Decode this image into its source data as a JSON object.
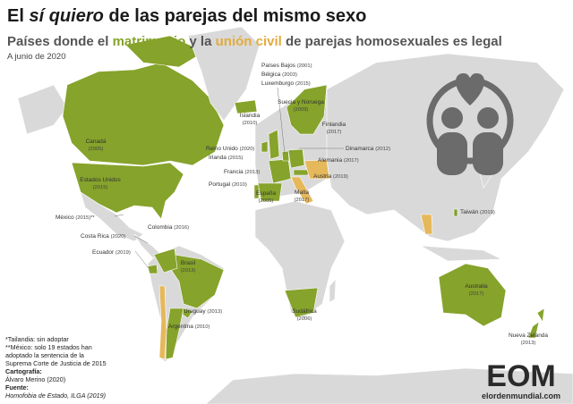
{
  "header": {
    "title": {
      "before": "El",
      "emphasis": "sí quiero",
      "after": "de las parejas del mismo sexo"
    },
    "subtitle": {
      "part1": "Países donde el",
      "marriage": "matrimonio",
      "part2": "y la",
      "civil_union": "unión civil",
      "part3": "de parejas homosexuales es legal"
    },
    "date": "A junio de 2020"
  },
  "labels": [
    {
      "name": "Canadá",
      "year": "(2005)"
    },
    {
      "name": "Estados Unidos",
      "year": "(2015)"
    },
    {
      "name": "México",
      "year": "(2015)**"
    },
    {
      "name": "Costa Rica",
      "year": "(2020)"
    },
    {
      "name": "Ecuador",
      "year": "(2019)"
    },
    {
      "name": "Colombia",
      "year": "(2016)"
    },
    {
      "name": "Brasil",
      "year": "(2013)"
    },
    {
      "name": "Uruguay",
      "year": "(2013)"
    },
    {
      "name": "Argentina",
      "year": "(2010)"
    },
    {
      "name": "Islandia",
      "year": "(2010)"
    },
    {
      "name": "Reino Unido",
      "year": "(2020)"
    },
    {
      "name": "Irlanda",
      "year": "(2015)"
    },
    {
      "name": "Francia",
      "year": "(2013)"
    },
    {
      "name": "Portugal",
      "year": "(2010)"
    },
    {
      "name": "España",
      "year": "(2005)"
    },
    {
      "name": "Malta",
      "year": "(2017)"
    },
    {
      "name": "Austria",
      "year": "(2019)"
    },
    {
      "name": "Alemania",
      "year": "(2017)"
    },
    {
      "name": "Dinamarca",
      "year": "(2012)"
    },
    {
      "name": "Finlandia",
      "year": "(2017)"
    },
    {
      "name": "Suecia y Noruega",
      "year": "(2009)"
    },
    {
      "name": "Países Bajos",
      "year": "(2001)"
    },
    {
      "name": "Bélgica",
      "year": "(2003)"
    },
    {
      "name": "Luxemburgo",
      "year": "(2015)"
    },
    {
      "name": "Taiwán",
      "year": "(2019)"
    },
    {
      "name": "Australia",
      "year": "(2017)"
    },
    {
      "name": "Nueva Zelanda",
      "year": "(2013)"
    },
    {
      "name": "Sudáfrica",
      "year": "(2006)"
    }
  ],
  "notes": {
    "thailand": "*Tailandia: sin adoptar",
    "mexico": [
      "**México: solo 19 estados han",
      "adoptado la sentencia de la",
      "Suprema Corte de Justicia de 2015"
    ],
    "cartography_label": "Cartografía:",
    "cartography": "Álvaro Merino (2020)",
    "source_label": "Fuente:",
    "source": "Homofobia de Estado, ILGA (2019)"
  },
  "logo": {
    "mark": "EOM",
    "site": "elordenmundial.com"
  }
}
